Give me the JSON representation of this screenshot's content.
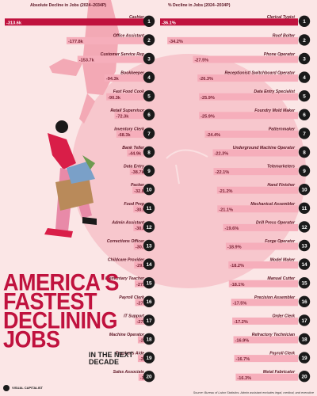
{
  "title": {
    "line1": "AMERICA'S",
    "line2": "FASTEST",
    "line3": "DECLINING",
    "line4": "JOBS",
    "sub": "IN THE NEXT DECADE"
  },
  "brand": "VISUAL CAPITALIST",
  "source": "Source: Bureau of Labor Statistics. Admin assistant excludes legal, medical, and executive",
  "colors": {
    "background": "#fbe6e6",
    "accent": "#c0123e",
    "bar_light": "#f6aebb",
    "text_dark": "#5a1322",
    "rank_circle": "#1a1a1a"
  },
  "chart_data": [
    {
      "type": "bar",
      "title": "Absolute Decline in Jobs (2024–2034P)",
      "orientation": "horizontal-left",
      "categories": [
        "Cashier",
        "Office Assistant",
        "Customer Service Rep",
        "Bookkeeper",
        "Fast Food Cook",
        "Retail Supervisor",
        "Inventory Clerk",
        "Bank Teller",
        "Data Entry",
        "Packer",
        "Food Prep",
        "Admin Assistant",
        "Corrections Officer",
        "Childcare Provider",
        "Elementary Teacher",
        "Payroll Clerk",
        "IT Support",
        "Machine Operator",
        "Teacher's Aide",
        "Sales Associate"
      ],
      "ranks": [
        "1",
        "2",
        "3",
        "4",
        "5",
        "6",
        "7",
        "8",
        "9",
        "10",
        "11",
        "12",
        "13",
        "14",
        "15",
        "16",
        "17",
        "18",
        "19",
        "20"
      ],
      "values": [
        -313.6,
        -177.8,
        -153.7,
        -94.3,
        -90.3,
        -72.3,
        -68.3,
        -44.9,
        -38.7,
        -32.8,
        -30.9,
        -30.8,
        -30.1,
        -29.2,
        -27.8,
        -27.0,
        -27.0,
        -21.1,
        -21.1,
        -19.6
      ],
      "labels": [
        "-313.6k",
        "-177.8k",
        "-153.7k",
        "-94.3k",
        "-90.3k",
        "-72.3k",
        "-68.3k",
        "-44.9k",
        "-38.7k",
        "-32.8k",
        "-30.9k",
        "-30.8k",
        "-30.1k",
        "-29.2k",
        "-27.8k",
        "-27.0k",
        "-27.0k",
        "-21.1k",
        "-21.1k",
        "-19.6k"
      ]
    },
    {
      "type": "bar",
      "title": "% Decline in Jobs (2024–2034P)",
      "orientation": "horizontal-left",
      "categories": [
        "Clerical Typist",
        "Roof Bolter",
        "Phone Operator",
        "Receptionist/ Switchboard Operator",
        "Data Entry Specialist",
        "Foundry Mold Maker",
        "Patternmaker",
        "Underground Machine Operator",
        "Telemarketers",
        "Hand Finisher",
        "Mechanical Assembler",
        "Drill Press Operator",
        "Forge Operator",
        "Model Maker",
        "Manual Cutter",
        "Precision Assembler",
        "Order Clerk",
        "Refractory Technician",
        "Payroll Clerk",
        "Metal Fabricator"
      ],
      "ranks": [
        "1",
        "2",
        "3",
        "4",
        "5",
        "6",
        "7",
        "8",
        "9",
        "10",
        "11",
        "12",
        "13",
        "14",
        "15",
        "16",
        "17",
        "18",
        "19",
        "20"
      ],
      "values": [
        -36.1,
        -34.2,
        -27.5,
        -26.3,
        -25.9,
        -25.9,
        -24.4,
        -22.3,
        -22.1,
        -21.2,
        -21.1,
        -19.6,
        -18.9,
        -18.2,
        -18.1,
        -17.5,
        -17.2,
        -16.9,
        -16.7,
        -16.3
      ],
      "labels": [
        "-36.1%",
        "-34.2%",
        "-27.5%",
        "-26.3%",
        "-25.9%",
        "-25.9%",
        "-24.4%",
        "-22.3%",
        "-22.1%",
        "-21.2%",
        "-21.1%",
        "-19.6%",
        "-18.9%",
        "-18.2%",
        "-18.1%",
        "-17.5%",
        "-17.2%",
        "-16.9%",
        "-16.7%",
        "-16.3%"
      ]
    }
  ]
}
